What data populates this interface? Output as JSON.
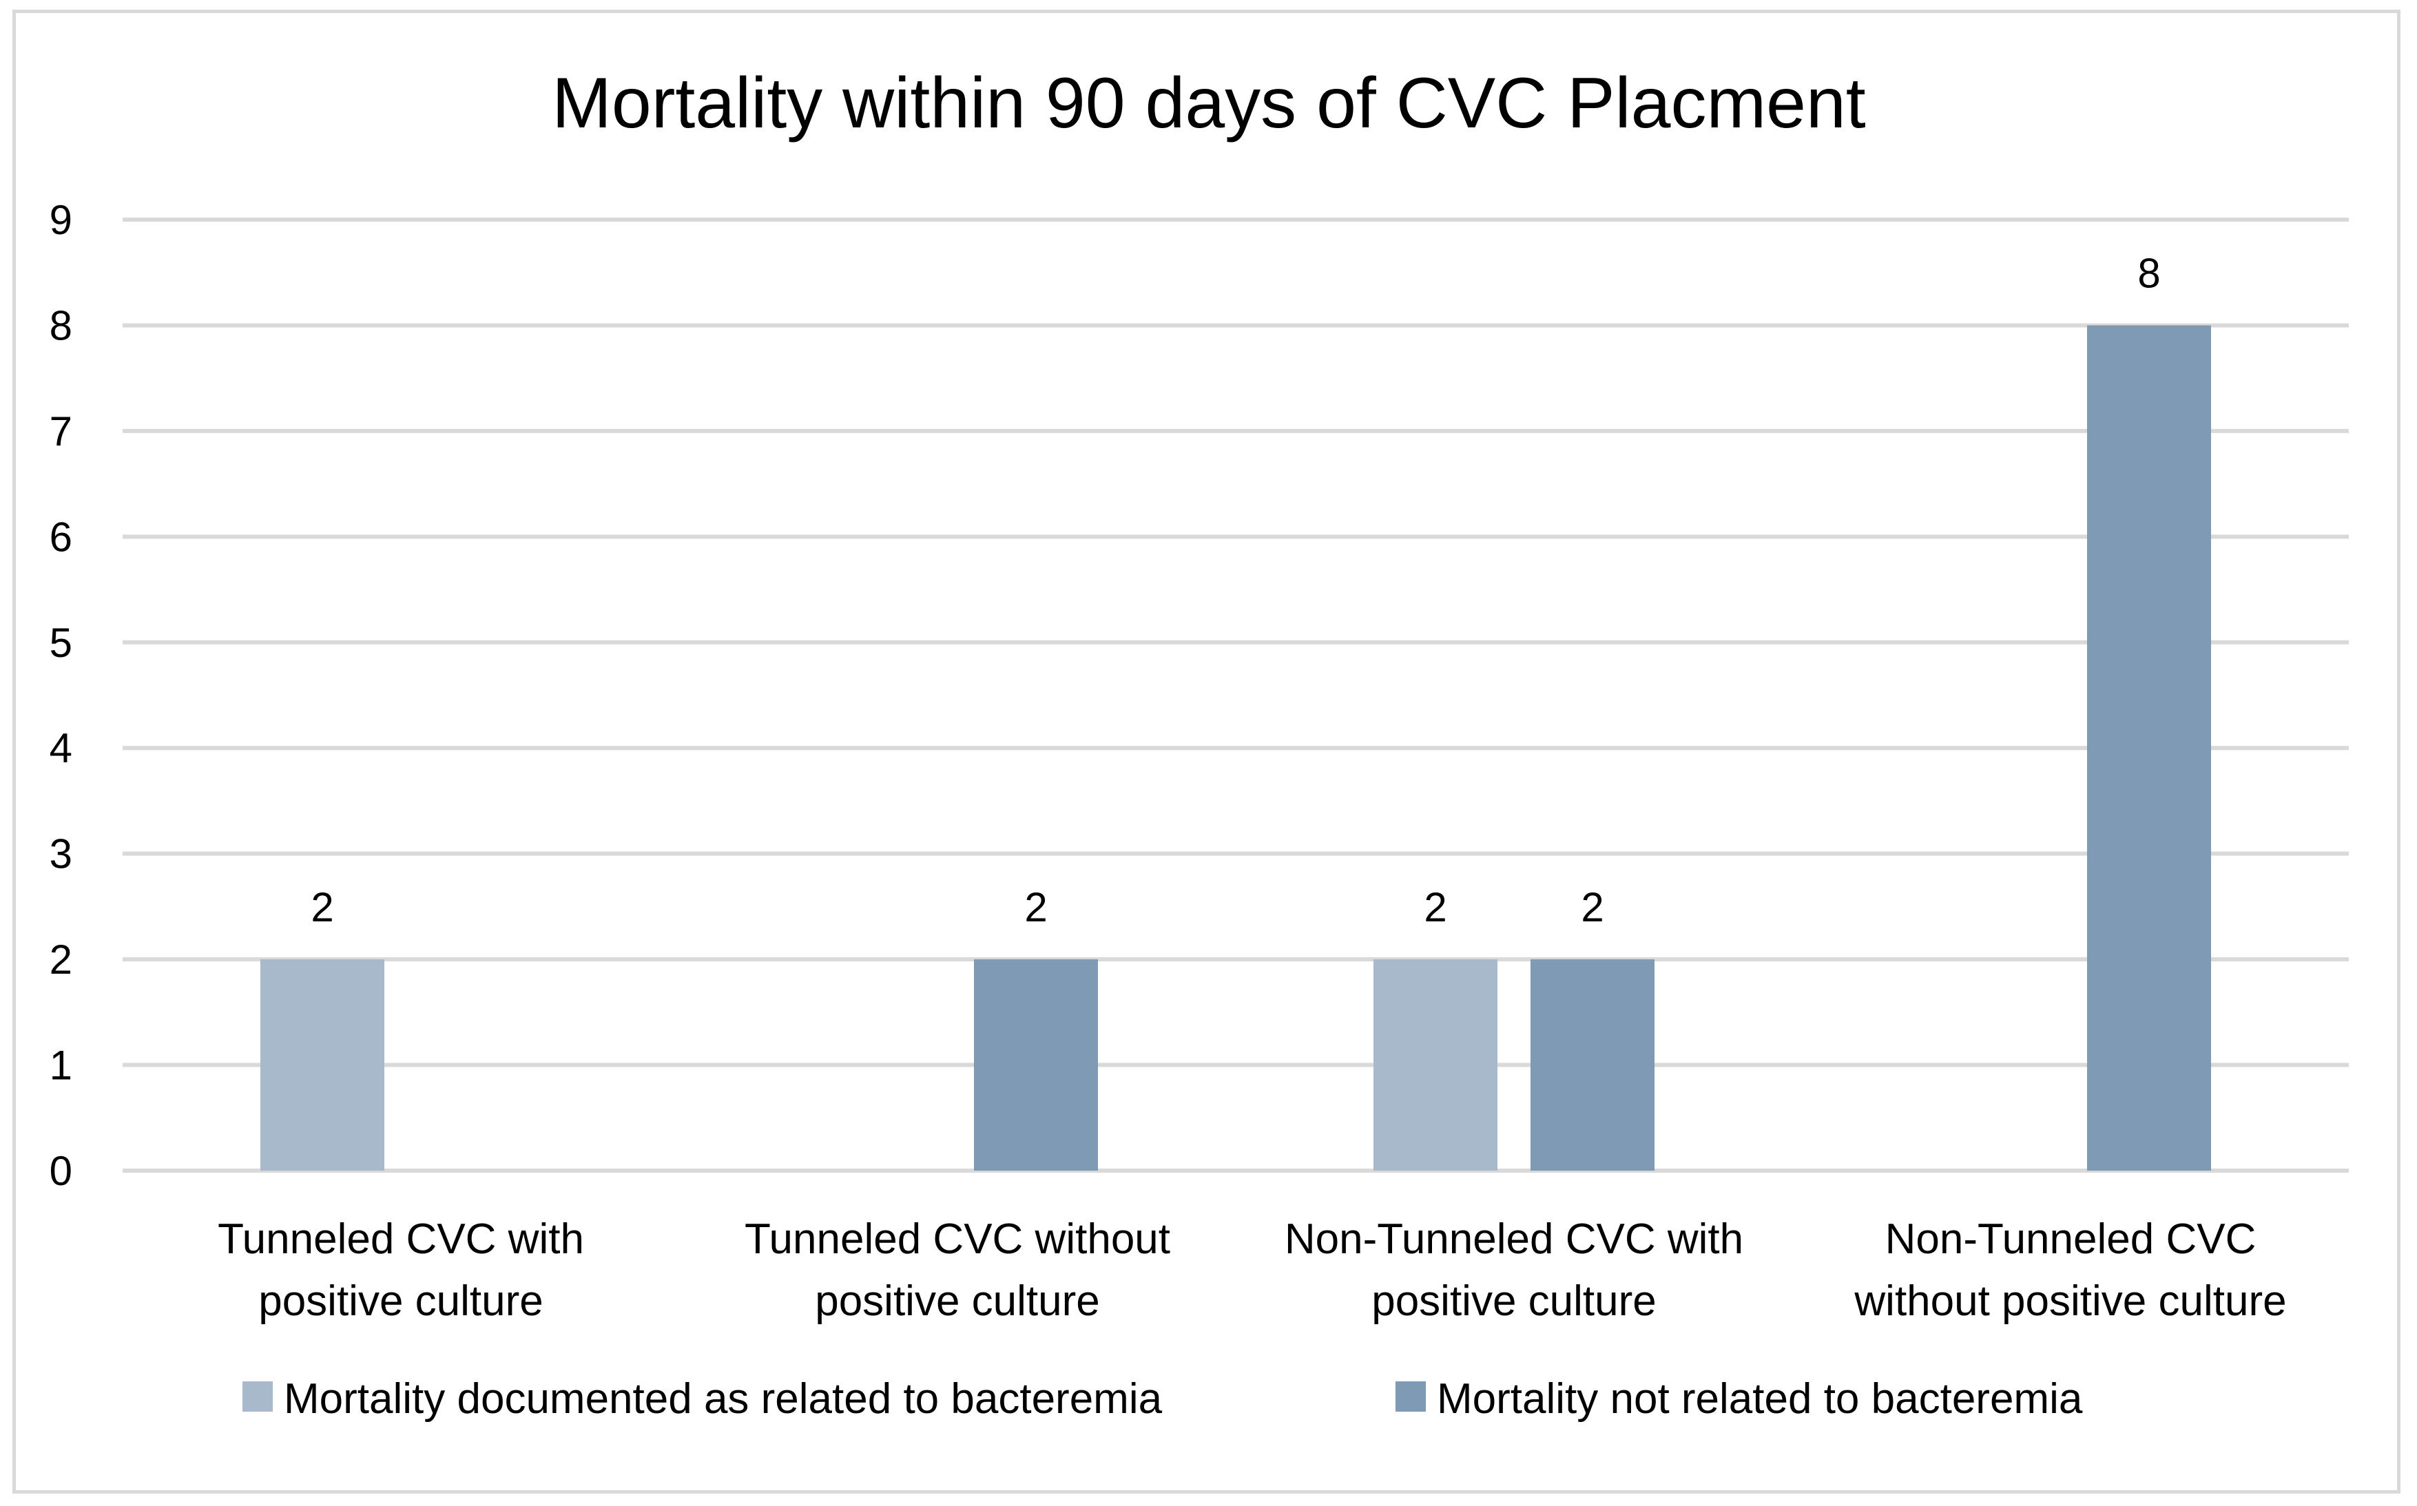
{
  "chart_data": {
    "type": "bar",
    "title": "Mortality within 90 days of CVC Placment",
    "categories": [
      [
        "Tunneled CVC with",
        "positive culture"
      ],
      [
        "Tunneled CVC without",
        "positive culture"
      ],
      [
        "Non-Tunneled CVC with",
        "positive culture"
      ],
      [
        "Non-Tunneled CVC",
        "without positive culture"
      ]
    ],
    "series": [
      {
        "name": "Mortality documented as related to bacteremia",
        "color": "#a9b9cc",
        "values": [
          2,
          0,
          2,
          0
        ]
      },
      {
        "name": "Mortality not related to bacteremia",
        "color": "#7f9ab4",
        "values": [
          0,
          2,
          2,
          8
        ]
      }
    ],
    "ylim": [
      0,
      9
    ],
    "yticks": [
      0,
      1,
      2,
      3,
      4,
      5,
      6,
      7,
      8,
      9
    ],
    "xlabel": "",
    "ylabel": "",
    "grid": true,
    "legend": "bottom",
    "data_labels": true
  }
}
